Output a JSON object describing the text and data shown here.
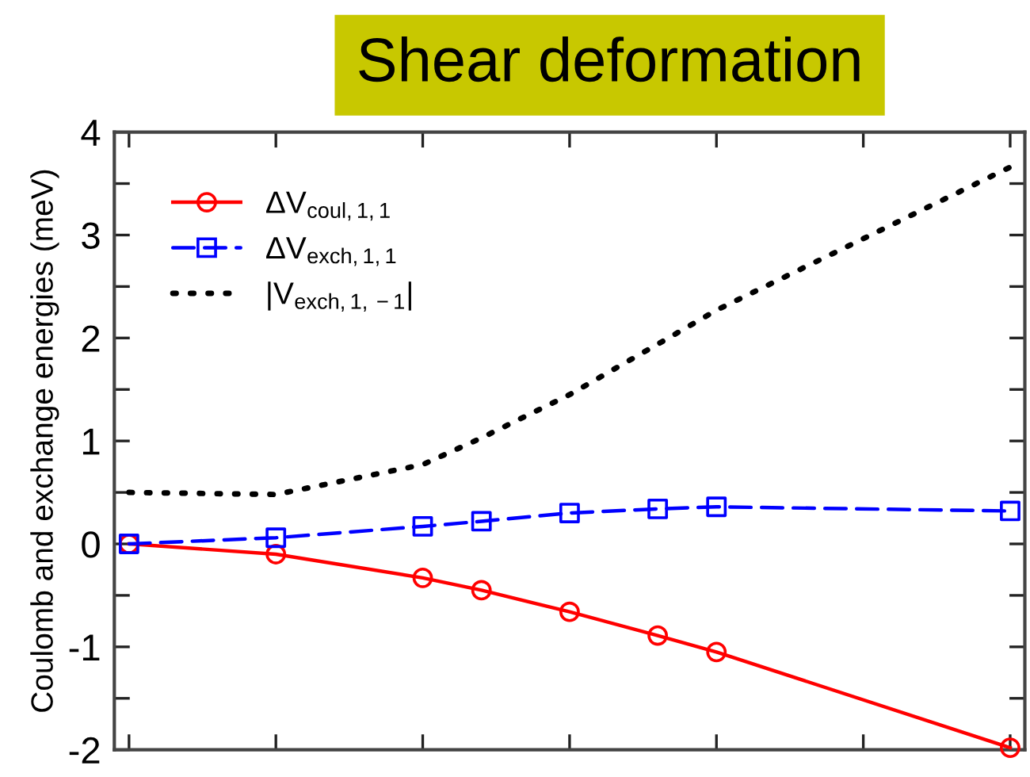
{
  "chart_data": {
    "type": "line",
    "title": "Shear deformation",
    "ylabel": "Coulomb and exchange energies (meV)",
    "categories": [
      null,
      null,
      null,
      null,
      null,
      null,
      null,
      null,
      null,
      null,
      null,
      null,
      null,
      null,
      null,
      null,
      null,
      null,
      null,
      null,
      null,
      null,
      null,
      null,
      null,
      null,
      null,
      null,
      null,
      null,
      null
    ],
    "ylim": [
      -2,
      4
    ],
    "yticks": [
      -2,
      {
        "value": -1.5,
        "label": null
      },
      -1,
      {
        "value": -0.5,
        "label": null
      },
      0,
      {
        "value": 0.5,
        "label": null
      },
      1,
      {
        "value": 1.5,
        "label": null
      },
      2,
      {
        "value": 2.5,
        "label": null
      },
      3,
      {
        "value": 3.5,
        "label": null
      },
      4
    ],
    "tick_labels": "y",
    "grid": false,
    "legend": "top left",
    "series": [
      {
        "name": "ΔV$_{coul,1,1}$",
        "color": "#ff0000",
        "marker": "circle",
        "line_style": "solid",
        "values": [
          0,
          null,
          null,
          null,
          null,
          -0.1,
          null,
          null,
          null,
          null,
          -0.33,
          null,
          -0.45,
          null,
          null,
          -0.66,
          null,
          null,
          -0.89,
          null,
          -1.05,
          null,
          null,
          null,
          null,
          null,
          null,
          null,
          null,
          null,
          -1.98
        ]
      },
      {
        "name": "ΔV$_{exch,1,1}$",
        "color": "#0000ff",
        "marker": "square",
        "line_style": "dashed",
        "values": [
          0,
          null,
          null,
          null,
          null,
          0.06,
          null,
          null,
          null,
          null,
          0.17,
          null,
          0.22,
          null,
          null,
          0.3,
          null,
          null,
          0.34,
          null,
          0.36,
          null,
          null,
          null,
          null,
          null,
          null,
          null,
          null,
          null,
          0.32
        ]
      },
      {
        "name": "|V$_{exch,1,−1}$|",
        "color": "#000000",
        "marker": "none",
        "line_style": "dotted",
        "values": [
          0.5,
          null,
          null,
          null,
          null,
          0.48,
          null,
          null,
          null,
          null,
          0.77,
          null,
          1.03,
          null,
          null,
          1.45,
          null,
          null,
          1.94,
          null,
          2.27,
          null,
          null,
          null,
          null,
          null,
          null,
          null,
          null,
          null,
          3.66
        ]
      }
    ]
  }
}
